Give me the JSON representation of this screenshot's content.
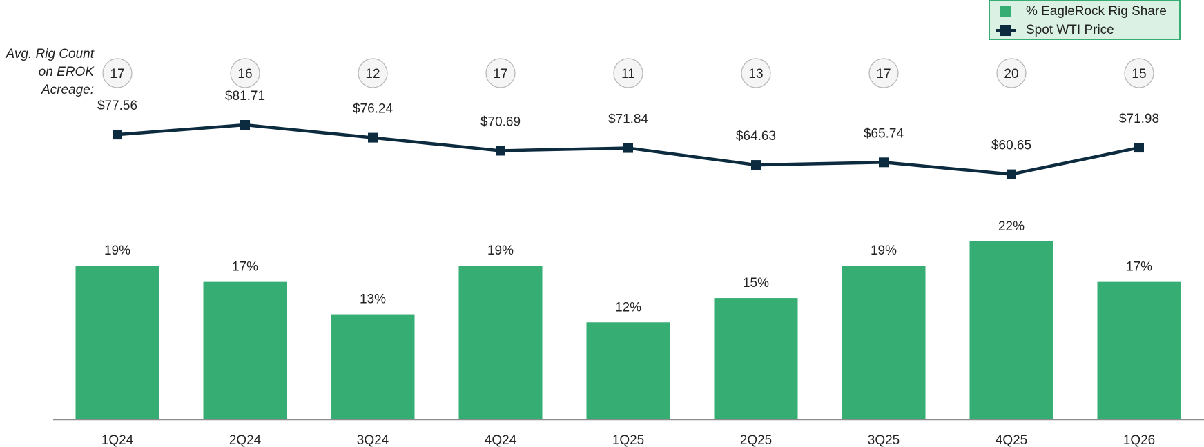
{
  "legend": {
    "bar_label": "% EagleRock Rig Share",
    "line_label": "Spot WTI Price"
  },
  "rig_count_label": {
    "line1": "Avg. Rig Count",
    "line2": "on EROK",
    "line3": "Acreage:"
  },
  "colors": {
    "bar": "#36ad72",
    "line": "#0d2b3e",
    "circle_fill": "#f5f5f5",
    "circle_stroke": "#b5b5b5",
    "axis": "#8c8c8c",
    "legend_bg": "#daf1e3"
  },
  "chart_data": {
    "type": "bar",
    "categories": [
      "1Q24",
      "2Q24",
      "3Q24",
      "4Q24",
      "1Q25",
      "2Q25",
      "3Q25",
      "4Q25",
      "1Q26"
    ],
    "series": [
      {
        "name": "% EagleRock Rig Share",
        "type": "bar",
        "values": [
          19,
          17,
          13,
          19,
          12,
          15,
          19,
          22,
          17
        ],
        "labels": [
          "19%",
          "17%",
          "13%",
          "19%",
          "12%",
          "15%",
          "19%",
          "22%",
          "17%"
        ]
      },
      {
        "name": "Spot WTI Price",
        "type": "line",
        "values": [
          77.56,
          81.71,
          76.24,
          70.69,
          71.84,
          64.63,
          65.74,
          60.65,
          71.98
        ],
        "labels": [
          "$77.56",
          "$81.71",
          "$76.24",
          "$70.69",
          "$71.84",
          "$64.63",
          "$65.74",
          "$60.65",
          "$71.98"
        ]
      }
    ],
    "rig_counts": [
      17,
      16,
      12,
      17,
      11,
      13,
      17,
      20,
      15
    ],
    "legend_position": "top-right",
    "grid": false
  }
}
